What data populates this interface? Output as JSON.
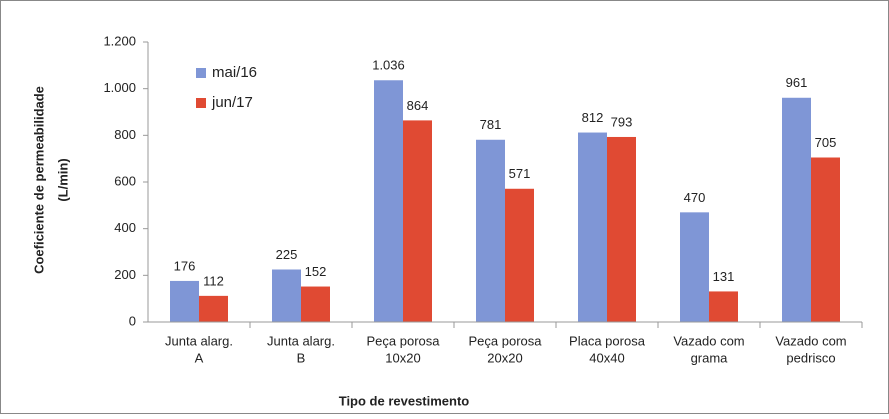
{
  "chart_data": {
    "type": "bar",
    "y_label": [
      "Coeficiente de permeabilidade",
      "(L/min)"
    ],
    "x_label": "Tipo de revestimento",
    "categories": [
      [
        "Junta alarg.",
        "A"
      ],
      [
        "Junta alarg.",
        "B"
      ],
      [
        "Peça porosa",
        "10x20"
      ],
      [
        "Peça porosa",
        "20x20"
      ],
      [
        "Placa porosa",
        "40x40"
      ],
      [
        "Vazado com",
        "grama"
      ],
      [
        "Vazado com",
        "pedrisco"
      ]
    ],
    "series": [
      {
        "name": "mai/16",
        "color": "#7f96d6",
        "values": [
          176,
          225,
          1036,
          781,
          812,
          470,
          961
        ],
        "value_labels": [
          "176",
          "225",
          "1.036",
          "781",
          "812",
          "470",
          "961"
        ]
      },
      {
        "name": "jun/17",
        "color": "#e04a33",
        "values": [
          112,
          152,
          864,
          571,
          793,
          131,
          705
        ]
      }
    ],
    "ylim": [
      0,
      1200
    ],
    "yticks": [
      0,
      200,
      400,
      600,
      800,
      {
        "value": 1000,
        "label": "1.000"
      },
      {
        "value": 1200,
        "label": "1.200"
      }
    ],
    "legend": "top-left"
  }
}
